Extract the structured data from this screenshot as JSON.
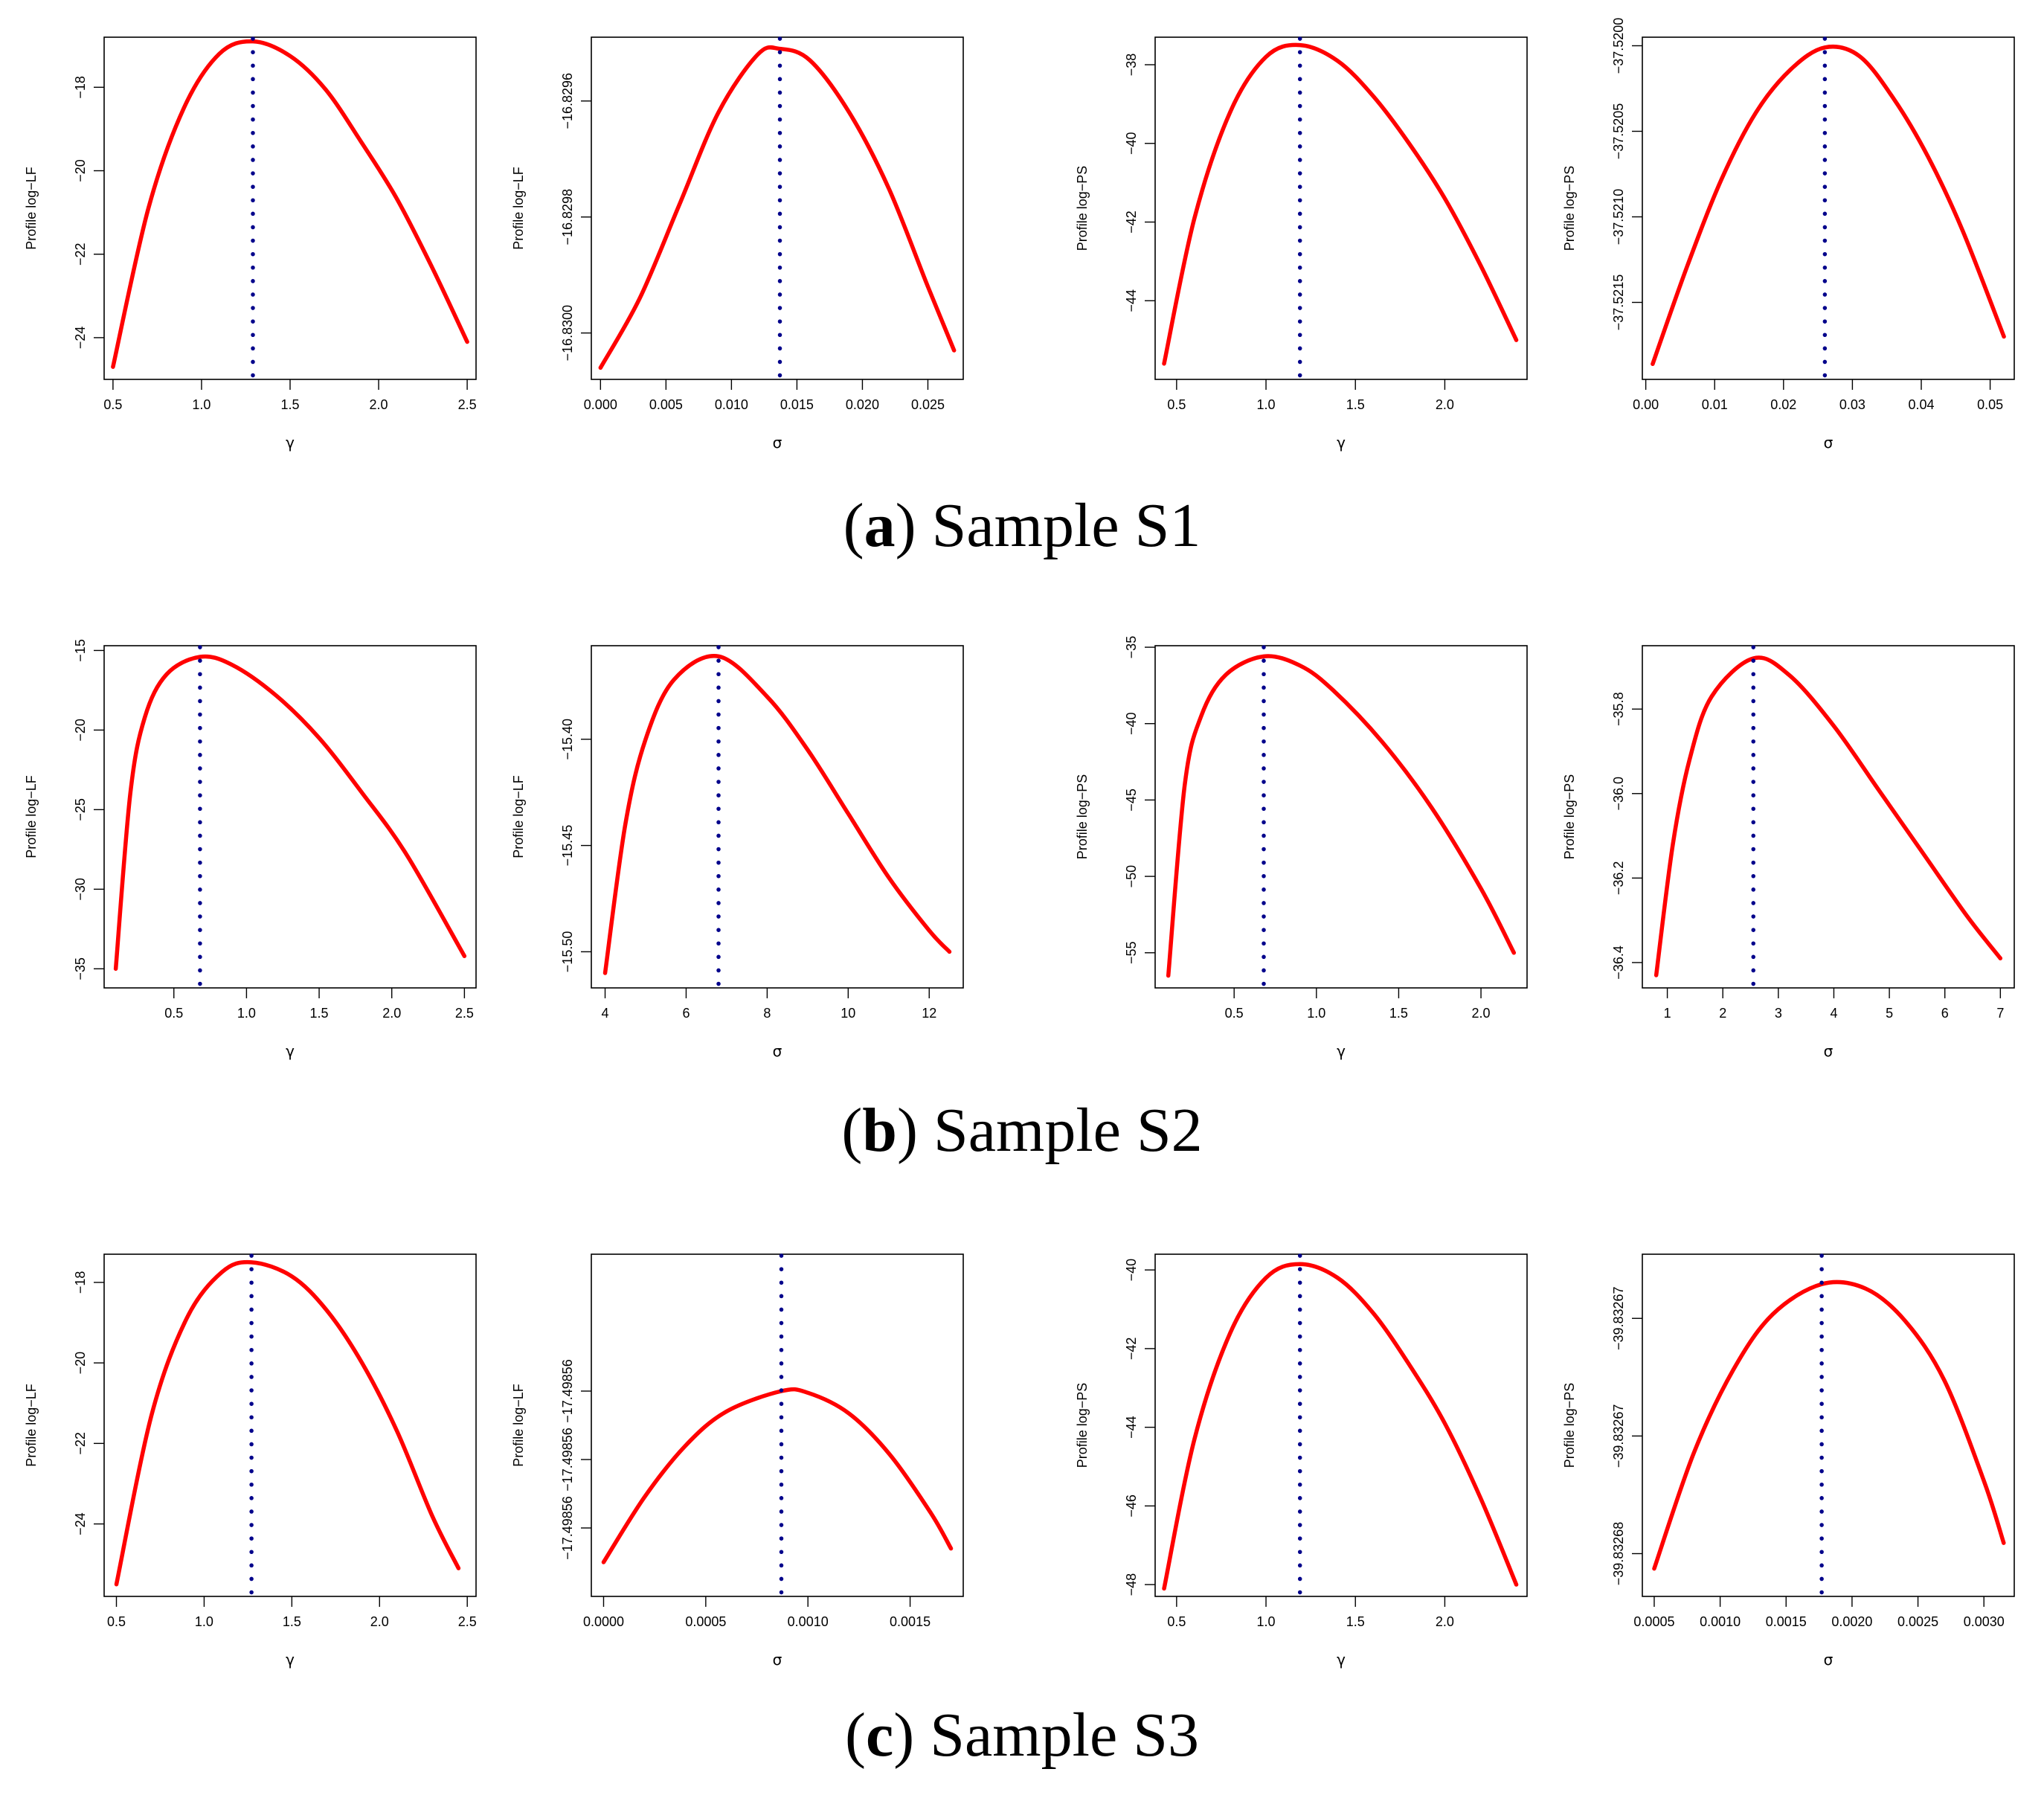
{
  "colors": {
    "curve": "#ff0000",
    "mle_line": "#00008b",
    "axis": "#000000",
    "background": "#ffffff"
  },
  "rows": [
    {
      "letter": "a",
      "title": "Sample S1"
    },
    {
      "letter": "b",
      "title": "Sample S2"
    },
    {
      "letter": "c",
      "title": "Sample S3"
    }
  ],
  "chart_data": [
    {
      "type": "line",
      "row": "a",
      "xlabel": "γ",
      "ylabel": "Profile log−LF",
      "xlim": [
        0.45,
        2.55
      ],
      "ylim": [
        -25.0,
        -16.8
      ],
      "xticks": [
        0.5,
        1.0,
        1.5,
        2.0,
        2.5
      ],
      "xticklabels": [
        "0.5",
        "1.0",
        "1.5",
        "2.0",
        "2.5"
      ],
      "yticks": [
        -24,
        -22,
        -20,
        -18
      ],
      "yticklabels": [
        "−24",
        "−22",
        "−20",
        "−18"
      ],
      "x": [
        0.5,
        0.7,
        0.9,
        1.1,
        1.29,
        1.5,
        1.7,
        1.9,
        2.1,
        2.3,
        2.5
      ],
      "y": [
        -24.7,
        -20.9,
        -18.5,
        -17.2,
        -16.9,
        -17.25,
        -18.05,
        -19.3,
        -20.65,
        -22.3,
        -24.1
      ],
      "mle": 1.29
    },
    {
      "type": "line",
      "row": "a",
      "xlabel": "σ",
      "ylabel": "Profile log−LF",
      "xlim": [
        -0.0007,
        0.0277
      ],
      "ylim": [
        -16.83008,
        -16.82949
      ],
      "xticks": [
        0.0,
        0.005,
        0.01,
        0.015,
        0.02,
        0.025
      ],
      "xticklabels": [
        "0.000",
        "0.005",
        "0.010",
        "0.015",
        "0.020",
        "0.025"
      ],
      "yticks": [
        -16.83,
        -16.8298,
        -16.8296
      ],
      "yticklabels": [
        "−16.8300",
        "−16.8298",
        "−16.8296"
      ],
      "x": [
        0.0,
        0.003,
        0.006,
        0.009,
        0.012,
        0.0137,
        0.016,
        0.019,
        0.022,
        0.025,
        0.027
      ],
      "y": [
        -16.83006,
        -16.82994,
        -16.82978,
        -16.82962,
        -16.82952,
        -16.82951,
        -16.82953,
        -16.82962,
        -16.82975,
        -16.82992,
        -16.83003
      ],
      "mle": 0.0137
    },
    {
      "type": "line",
      "row": "a",
      "xlabel": "γ",
      "ylabel": "Profile log−PS",
      "xlim": [
        0.38,
        2.46
      ],
      "ylim": [
        -46.0,
        -37.3
      ],
      "xticks": [
        0.5,
        1.0,
        1.5,
        2.0
      ],
      "xticklabels": [
        "0.5",
        "1.0",
        "1.5",
        "2.0"
      ],
      "yticks": [
        -44,
        -42,
        -40,
        -38
      ],
      "yticklabels": [
        "−44",
        "−42",
        "−40",
        "−38"
      ],
      "x": [
        0.43,
        0.6,
        0.8,
        1.0,
        1.19,
        1.4,
        1.6,
        1.8,
        2.0,
        2.2,
        2.4
      ],
      "y": [
        -45.6,
        -41.9,
        -39.2,
        -37.8,
        -37.5,
        -37.9,
        -38.8,
        -40.0,
        -41.4,
        -43.1,
        -45.0
      ],
      "mle": 1.19
    },
    {
      "type": "line",
      "row": "a",
      "xlabel": "σ",
      "ylabel": "Profile log−PS",
      "xlim": [
        -0.0005,
        0.0535
      ],
      "ylim": [
        -37.52195,
        -37.51995
      ],
      "xticks": [
        0.0,
        0.01,
        0.02,
        0.03,
        0.04,
        0.05
      ],
      "xticklabels": [
        "0.00",
        "0.01",
        "0.02",
        "0.03",
        "0.04",
        "0.05"
      ],
      "yticks": [
        -37.5215,
        -37.521,
        -37.5205,
        -37.52
      ],
      "yticklabels": [
        "−37.5215",
        "−37.5210",
        "−37.5205",
        "−37.5200"
      ],
      "x": [
        0.001,
        0.006,
        0.011,
        0.016,
        0.021,
        0.026,
        0.031,
        0.036,
        0.041,
        0.046,
        0.052
      ],
      "y": [
        -37.52186,
        -37.52129,
        -37.52078,
        -37.52039,
        -37.52014,
        -37.52001,
        -37.52006,
        -37.52031,
        -37.52065,
        -37.52108,
        -37.5217
      ],
      "mle": 0.026
    },
    {
      "type": "line",
      "row": "b",
      "xlabel": "γ",
      "ylabel": "Profile log−LF",
      "xlim": [
        0.02,
        2.58
      ],
      "ylim": [
        -36.2,
        -14.7
      ],
      "xticks": [
        0.5,
        1.0,
        1.5,
        2.0,
        2.5
      ],
      "xticklabels": [
        "0.5",
        "1.0",
        "1.5",
        "2.0",
        "2.5"
      ],
      "yticks": [
        -35,
        -30,
        -25,
        -20,
        -15
      ],
      "yticklabels": [
        "−35",
        "−30",
        "−25",
        "−20",
        "−15"
      ],
      "x": [
        0.1,
        0.2,
        0.3,
        0.45,
        0.68,
        0.9,
        1.2,
        1.5,
        1.8,
        2.1,
        2.5
      ],
      "y": [
        -35.0,
        -24.0,
        -19.2,
        -16.5,
        -15.4,
        -15.9,
        -17.8,
        -20.5,
        -24.0,
        -27.8,
        -34.2
      ],
      "mle": 0.68
    },
    {
      "type": "line",
      "row": "b",
      "xlabel": "σ",
      "ylabel": "Profile log−LF",
      "xlim": [
        3.66,
        12.84
      ],
      "ylim": [
        -15.517,
        -15.356
      ],
      "xticks": [
        4,
        6,
        8,
        10,
        12
      ],
      "xticklabels": [
        "4",
        "6",
        "8",
        "10",
        "12"
      ],
      "yticks": [
        -15.5,
        -15.45,
        -15.4
      ],
      "yticklabels": [
        "−15.50",
        "−15.45",
        "−15.40"
      ],
      "x": [
        4.0,
        4.5,
        5.0,
        5.7,
        6.8,
        8.0,
        9.0,
        10.0,
        11.0,
        12.0,
        12.5
      ],
      "y": [
        -15.51,
        -15.44,
        -15.4,
        -15.372,
        -15.361,
        -15.38,
        -15.405,
        -15.435,
        -15.465,
        -15.49,
        -15.5
      ],
      "mle": 6.8
    },
    {
      "type": "line",
      "row": "b",
      "xlabel": "γ",
      "ylabel": "Profile log−PS",
      "xlim": [
        0.02,
        2.28
      ],
      "ylim": [
        -57.3,
        -34.9
      ],
      "xticks": [
        0.5,
        1.0,
        1.5,
        2.0
      ],
      "xticklabels": [
        "0.5",
        "1.0",
        "1.5",
        "2.0"
      ],
      "yticks": [
        -55,
        -50,
        -45,
        -40,
        -35
      ],
      "yticklabels": [
        "−55",
        "−50",
        "−45",
        "−40",
        "−35"
      ],
      "x": [
        0.1,
        0.2,
        0.3,
        0.45,
        0.68,
        0.9,
        1.1,
        1.4,
        1.7,
        2.0,
        2.2
      ],
      "y": [
        -56.5,
        -44.0,
        -39.5,
        -36.8,
        -35.6,
        -36.2,
        -37.8,
        -41.2,
        -45.5,
        -50.8,
        -55.0
      ],
      "mle": 0.68
    },
    {
      "type": "line",
      "row": "b",
      "xlabel": "σ",
      "ylabel": "Profile log−PS",
      "xlim": [
        0.55,
        7.25
      ],
      "ylim": [
        -36.46,
        -35.65
      ],
      "xticks": [
        1,
        2,
        3,
        4,
        5,
        6,
        7
      ],
      "xticklabels": [
        "1",
        "2",
        "3",
        "4",
        "5",
        "6",
        "7"
      ],
      "yticks": [
        -36.4,
        -36.2,
        -36.0,
        -35.8
      ],
      "yticklabels": [
        "−36.4",
        "−36.2",
        "−36.0",
        "−35.8"
      ],
      "x": [
        0.8,
        1.1,
        1.4,
        1.8,
        2.55,
        3.2,
        4.0,
        4.8,
        5.6,
        6.4,
        7.0
      ],
      "y": [
        -36.43,
        -36.12,
        -35.92,
        -35.77,
        -35.68,
        -35.72,
        -35.84,
        -35.99,
        -36.14,
        -36.29,
        -36.39
      ],
      "mle": 2.55
    },
    {
      "type": "line",
      "row": "c",
      "xlabel": "γ",
      "ylabel": "Profile log−LF",
      "xlim": [
        0.43,
        2.55
      ],
      "ylim": [
        -25.8,
        -17.3
      ],
      "xticks": [
        0.5,
        1.0,
        1.5,
        2.0,
        2.5
      ],
      "xticklabels": [
        "0.5",
        "1.0",
        "1.5",
        "2.0",
        "2.5"
      ],
      "yticks": [
        -24,
        -22,
        -20,
        -18
      ],
      "yticklabels": [
        "−24",
        "−22",
        "−20",
        "−18"
      ],
      "x": [
        0.5,
        0.7,
        0.9,
        1.1,
        1.27,
        1.5,
        1.7,
        1.9,
        2.1,
        2.3,
        2.45
      ],
      "y": [
        -25.5,
        -21.3,
        -18.9,
        -17.75,
        -17.5,
        -17.85,
        -18.7,
        -20.0,
        -21.7,
        -23.8,
        -25.1
      ],
      "mle": 1.27
    },
    {
      "type": "line",
      "row": "c",
      "xlabel": "σ",
      "ylabel": "Profile log−LF",
      "xlim": [
        -6e-05,
        0.00176
      ],
      "ylim": [
        -17.49857,
        -17.49855
      ],
      "xticks": [
        0.0,
        0.0005,
        0.001,
        0.0015
      ],
      "xticklabels": [
        "0.0000",
        "0.0005",
        "0.0010",
        "0.0015"
      ],
      "yticks": [
        -17.498566,
        -17.498562,
        -17.498558
      ],
      "yticklabels": [
        "−17.49856",
        "−17.49856",
        "−17.49856"
      ],
      "x": [
        0.0,
        0.0002,
        0.0004,
        0.0006,
        0.00087,
        0.001,
        0.0012,
        0.0014,
        0.0016,
        0.0017
      ],
      "y": [
        -17.498568,
        -17.4985642,
        -17.4985612,
        -17.4985592,
        -17.498558,
        -17.4985581,
        -17.4985593,
        -17.4985617,
        -17.4985651,
        -17.4985672
      ],
      "mle": 0.00087
    },
    {
      "type": "line",
      "row": "c",
      "xlabel": "γ",
      "ylabel": "Profile log−PS",
      "xlim": [
        0.38,
        2.46
      ],
      "ylim": [
        -48.3,
        -39.6
      ],
      "xticks": [
        0.5,
        1.0,
        1.5,
        2.0
      ],
      "xticklabels": [
        "0.5",
        "1.0",
        "1.5",
        "2.0"
      ],
      "yticks": [
        -48,
        -46,
        -44,
        -42,
        -40
      ],
      "yticklabels": [
        "−48",
        "−46",
        "−44",
        "−42",
        "−40"
      ],
      "x": [
        0.43,
        0.6,
        0.8,
        1.0,
        1.19,
        1.4,
        1.6,
        1.8,
        2.0,
        2.2,
        2.4
      ],
      "y": [
        -48.1,
        -44.3,
        -41.6,
        -40.2,
        -39.85,
        -40.2,
        -41.1,
        -42.4,
        -43.9,
        -45.8,
        -48.0
      ],
      "mle": 1.19
    },
    {
      "type": "line",
      "row": "c",
      "xlabel": "σ",
      "ylabel": "Profile log−PS",
      "xlim": [
        0.00041,
        0.00323
      ],
      "ylim": [
        -39.832683,
        -39.832667
      ],
      "xticks": [
        0.0005,
        0.001,
        0.0015,
        0.002,
        0.0025,
        0.003
      ],
      "xticklabels": [
        "0.0005",
        "0.0010",
        "0.0015",
        "0.0020",
        "0.0025",
        "0.0030"
      ],
      "yticks": [
        -39.832681,
        -39.8326755,
        -39.83267
      ],
      "yticklabels": [
        "−39.83268",
        "−39.83267",
        "−39.83267"
      ],
      "x": [
        0.0005,
        0.0008,
        0.0011,
        0.0014,
        0.00177,
        0.0021,
        0.0024,
        0.0027,
        0.003,
        0.00315
      ],
      "y": [
        -39.8326817,
        -39.8326763,
        -39.8326724,
        -39.8326698,
        -39.8326684,
        -39.8326686,
        -39.8326701,
        -39.8326729,
        -39.8326776,
        -39.8326805
      ],
      "mle": 0.00177
    }
  ]
}
